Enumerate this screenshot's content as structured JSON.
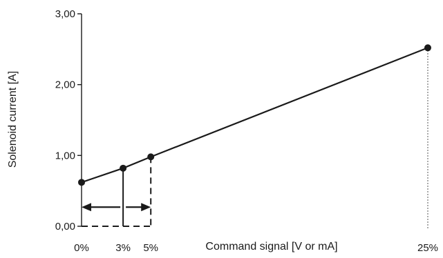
{
  "chart_data": {
    "type": "line",
    "title": "",
    "xlabel": "Command signal [V or mA]",
    "ylabel": "Solenoid current [A]",
    "xlim": [
      0,
      25
    ],
    "ylim": [
      0,
      3
    ],
    "x_ticks": [
      {
        "value": 0,
        "label": "0%"
      },
      {
        "value": 3,
        "label": "3%"
      },
      {
        "value": 5,
        "label": "5%"
      },
      {
        "value": 25,
        "label": "25%"
      }
    ],
    "y_ticks": [
      {
        "value": 0,
        "label": "0,00"
      },
      {
        "value": 1,
        "label": "1,00"
      },
      {
        "value": 2,
        "label": "2,00"
      },
      {
        "value": 3,
        "label": "3,00"
      }
    ],
    "grid": false,
    "series": [
      {
        "x": [
          0,
          3,
          5,
          25
        ],
        "y": [
          0.62,
          0.82,
          0.98,
          2.52
        ]
      }
    ],
    "annotations": {
      "solid_drop_x": 3,
      "dashed_drop_x": [
        5
      ],
      "dotted_drop_x": [
        25
      ],
      "arrow_y": 0.27,
      "arrows": [
        {
          "from": 3,
          "to": 0
        },
        {
          "from": 3,
          "to": 5
        }
      ]
    },
    "colors": {
      "line": "#1a1a1a",
      "axis": "#1a1a1a"
    }
  }
}
